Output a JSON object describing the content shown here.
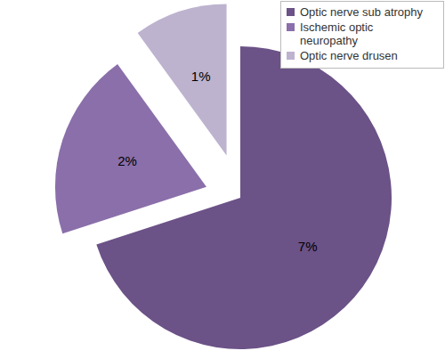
{
  "chart_data": {
    "type": "pie",
    "categories": [
      "Optic nerve sub atrophy",
      "Ischemic optic neuropathy",
      "Optic nerve drusen"
    ],
    "values": [
      7,
      2,
      1
    ],
    "value_labels": [
      "7%",
      "2%",
      "1%"
    ],
    "colors": [
      "#6b5287",
      "#8a6faa",
      "#bdb3cf"
    ],
    "legend": "right",
    "data_labels": true
  }
}
